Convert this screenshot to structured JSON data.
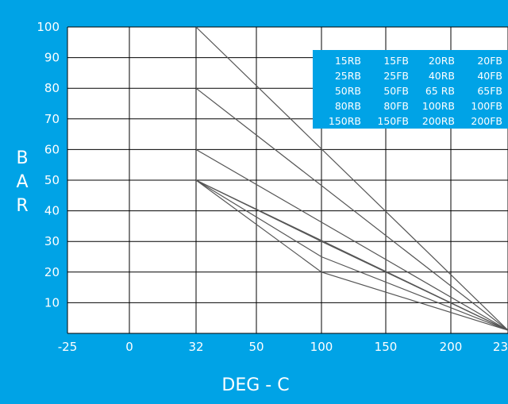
{
  "chart_data": {
    "type": "line",
    "title": "",
    "xlabel": "DEG - C",
    "ylabel_letters": [
      "B",
      "A",
      "R"
    ],
    "x_tick_labels": [
      "-25",
      "0",
      "32",
      "50",
      "100",
      "150",
      "200",
      "23"
    ],
    "y_ticks": [
      10,
      20,
      30,
      40,
      50,
      60,
      70,
      80,
      90,
      100
    ],
    "ylim": [
      0,
      100
    ],
    "grid": true,
    "legend_position": "top-right",
    "legend_rows": [
      [
        "15RB",
        "15FB",
        "20RB",
        "20FB"
      ],
      [
        "25RB",
        "25FB",
        "40RB",
        "40FB"
      ],
      [
        "50RB",
        "50FB",
        "65 RB",
        "65FB"
      ],
      [
        "80RB",
        "80FB",
        "100RB",
        "100FB"
      ],
      [
        "150RB",
        "150FB",
        "200RB",
        "200FB"
      ]
    ],
    "series": [
      {
        "x": [
          32,
          232
        ],
        "y": [
          100,
          1
        ]
      },
      {
        "x": [
          32,
          232
        ],
        "y": [
          80,
          1
        ]
      },
      {
        "x": [
          32,
          232
        ],
        "y": [
          60,
          1
        ]
      },
      {
        "x": [
          32,
          232
        ],
        "y": [
          50,
          1
        ]
      },
      {
        "x": [
          32,
          100,
          232
        ],
        "y": [
          50,
          20,
          1
        ]
      },
      {
        "x": [
          32,
          100,
          232
        ],
        "y": [
          50,
          25,
          1
        ]
      },
      {
        "x": [
          32,
          100,
          232
        ],
        "y": [
          50,
          30,
          1
        ]
      }
    ],
    "colors": {
      "background": "#00a3e6",
      "plot_area": "#ffffff",
      "grid": "#000000",
      "series_line": "#555555",
      "text": "#ffffff"
    }
  }
}
